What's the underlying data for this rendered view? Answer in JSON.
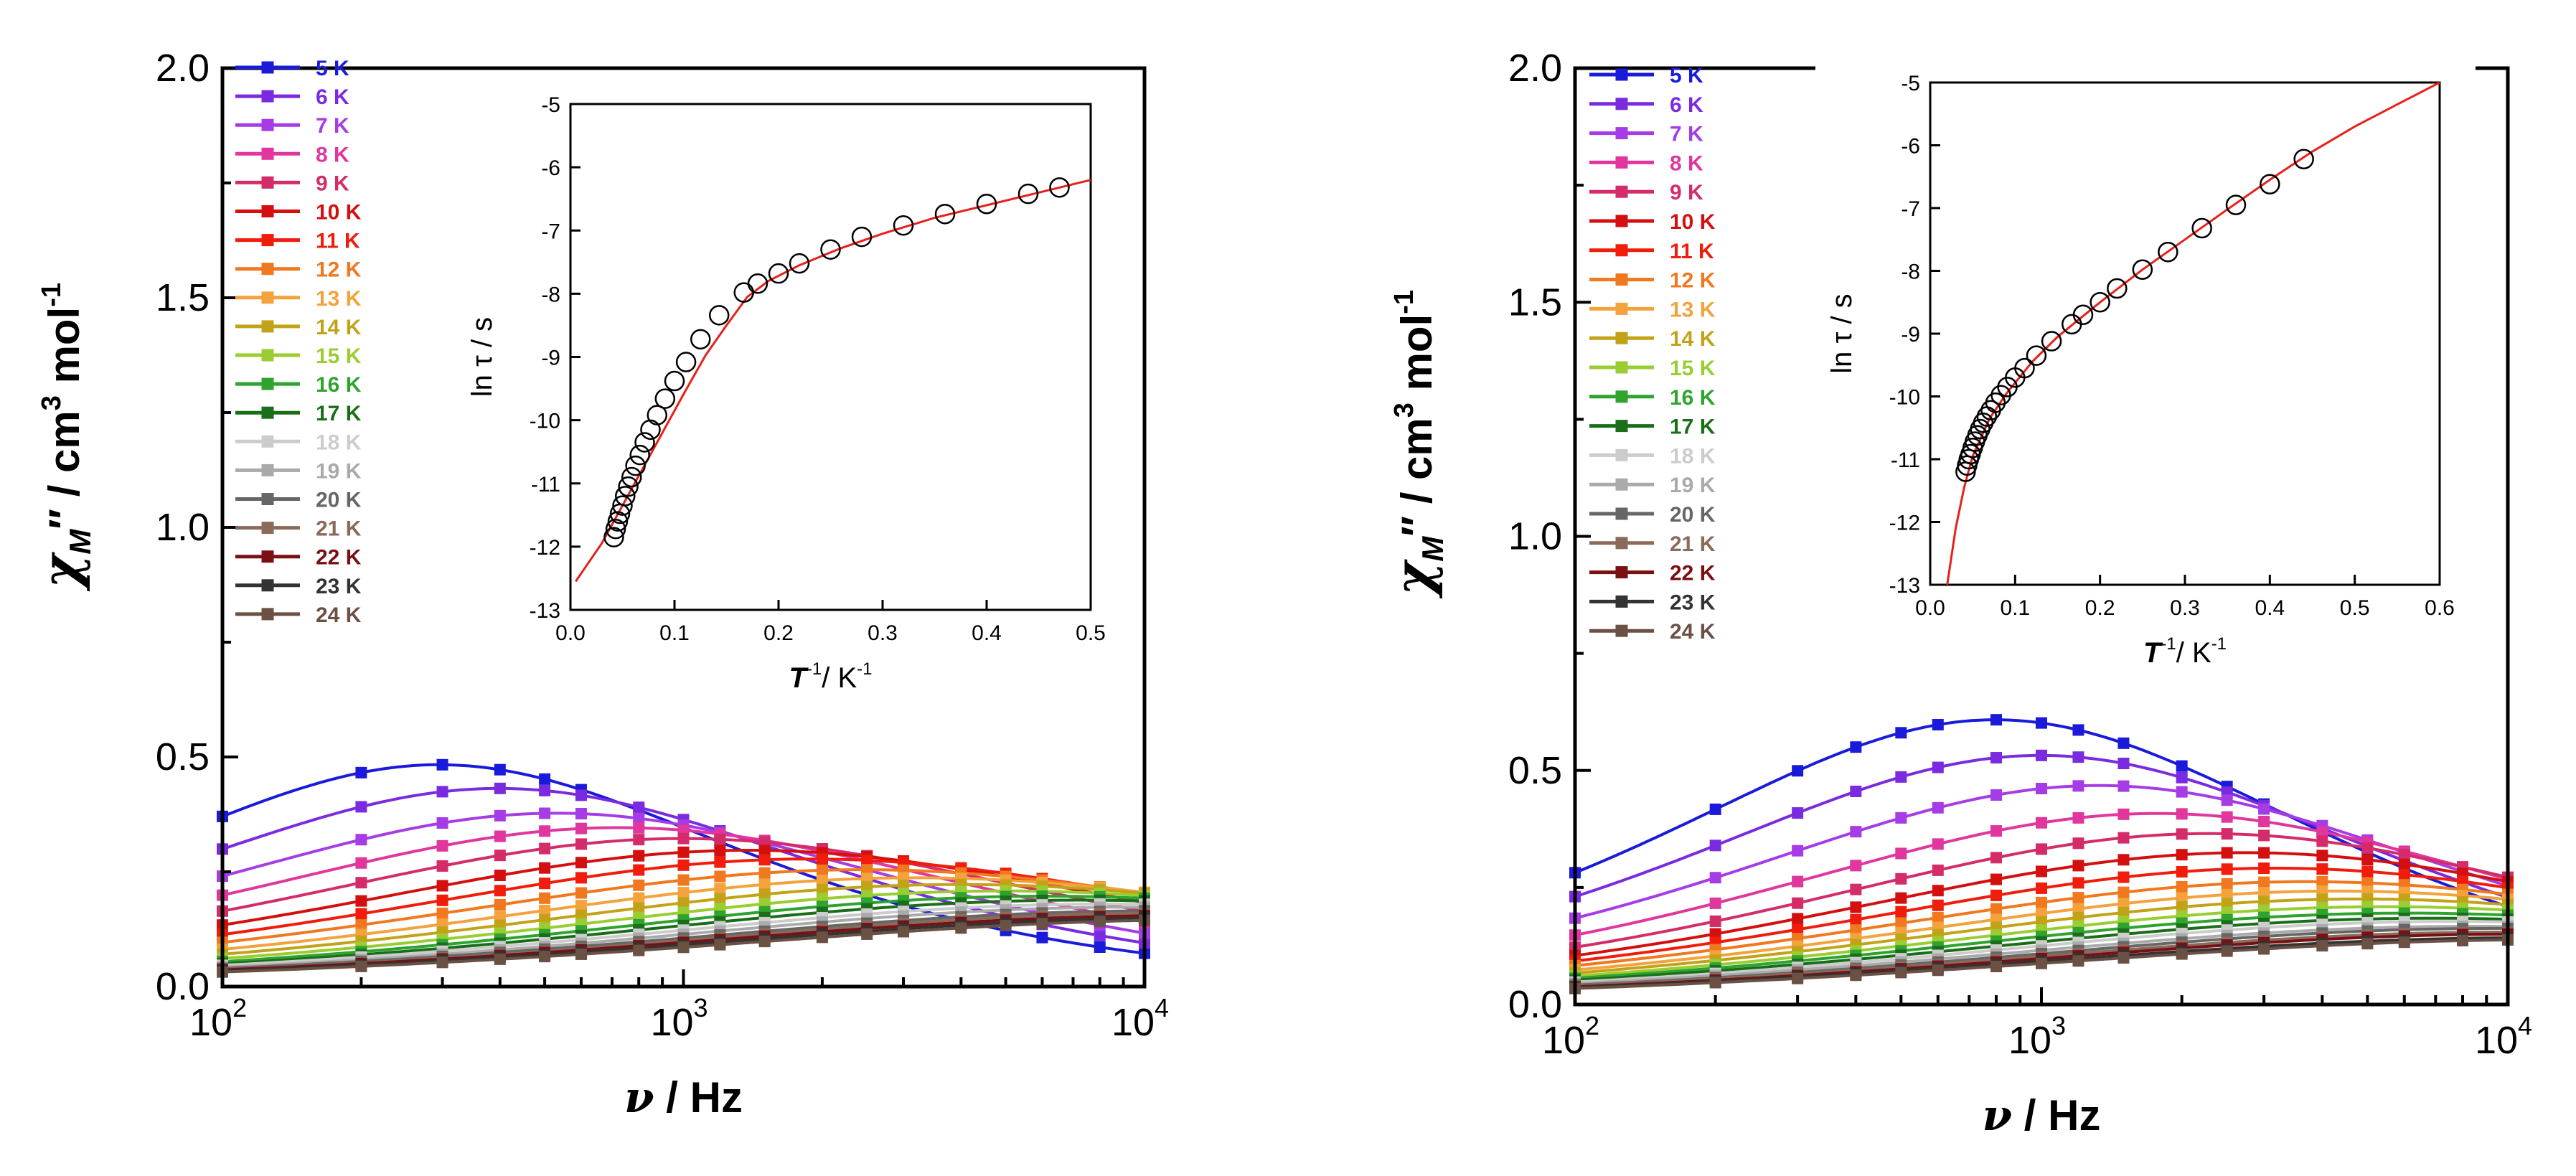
{
  "chart_data": [
    {
      "type": "line",
      "panel": "left",
      "xscale": "log",
      "xlim": [
        100,
        10000
      ],
      "ylim": [
        0,
        2.0
      ],
      "x_ticks": [
        "10",
        "10",
        "10"
      ],
      "x_tick_exps": [
        "2",
        "3",
        "4"
      ],
      "y_ticks": [
        "0.0",
        "0.5",
        "1.0",
        "1.5",
        "2.0"
      ],
      "xlabel_sym": "ν",
      "xlabel_rest": " / Hz",
      "ylabel_sym": "χ",
      "ylabel_sub": "M",
      "ylabel_rest": "″ / cm",
      "ylabel_sup": "3",
      "ylabel_rest2": " mol",
      "ylabel_sup2": "-1",
      "x": [
        100,
        200,
        300,
        400,
        500,
        600,
        800,
        1000,
        1200,
        1500,
        2000,
        2500,
        3000,
        4000,
        5000,
        6000,
        8000,
        10000
      ],
      "series": [
        {
          "name": "5 K",
          "color": "#1a1adb",
          "tau": 0.00054,
          "amp": 1.33,
          "alpha": 0.2,
          "base": 0.0
        },
        {
          "name": "6 K",
          "color": "#7a2be0",
          "tau": 0.0004,
          "amp": 1.27,
          "alpha": 0.24,
          "base": 0.0
        },
        {
          "name": "7 K",
          "color": "#a63ce6",
          "tau": 0.0003,
          "amp": 1.19,
          "alpha": 0.28,
          "base": 0.0
        },
        {
          "name": "8 K",
          "color": "#e0369e",
          "tau": 0.00022,
          "amp": 1.15,
          "alpha": 0.31,
          "base": 0.0
        },
        {
          "name": "9 K",
          "color": "#d42c6a",
          "tau": 0.00016,
          "amp": 1.11,
          "alpha": 0.33,
          "base": 0.0
        },
        {
          "name": "10 K",
          "color": "#d40f0f",
          "tau": 0.000115,
          "amp": 1.06,
          "alpha": 0.35,
          "base": 0.0
        },
        {
          "name": "11 K",
          "color": "#f01c0c",
          "tau": 8.5e-05,
          "amp": 1.03,
          "alpha": 0.37,
          "base": 0.0
        },
        {
          "name": "12 K",
          "color": "#f0781e",
          "tau": 6.5e-05,
          "amp": 0.98,
          "alpha": 0.39,
          "base": 0.0
        },
        {
          "name": "13 K",
          "color": "#f4a23c",
          "tau": 5e-05,
          "amp": 0.93,
          "alpha": 0.4,
          "base": 0.0
        },
        {
          "name": "14 K",
          "color": "#c2a318",
          "tau": 4e-05,
          "amp": 0.89,
          "alpha": 0.41,
          "base": 0.0
        },
        {
          "name": "15 K",
          "color": "#9acd32",
          "tau": 3.2e-05,
          "amp": 0.85,
          "alpha": 0.42,
          "base": 0.0
        },
        {
          "name": "16 K",
          "color": "#2ea32e",
          "tau": 2.6e-05,
          "amp": 0.82,
          "alpha": 0.43,
          "base": 0.0
        },
        {
          "name": "17 K",
          "color": "#1a6e1a",
          "tau": 2.2e-05,
          "amp": 0.8,
          "alpha": 0.44,
          "base": 0.0
        },
        {
          "name": "18 K",
          "color": "#cccccc",
          "tau": 1.9e-05,
          "amp": 0.78,
          "alpha": 0.45,
          "base": 0.0
        },
        {
          "name": "19 K",
          "color": "#aaaaaa",
          "tau": 1.7e-05,
          "amp": 0.75,
          "alpha": 0.45,
          "base": 0.0
        },
        {
          "name": "20 K",
          "color": "#666666",
          "tau": 1.5e-05,
          "amp": 0.73,
          "alpha": 0.46,
          "base": 0.0
        },
        {
          "name": "21 K",
          "color": "#8a6a5a",
          "tau": 1.4e-05,
          "amp": 0.71,
          "alpha": 0.46,
          "base": 0.0
        },
        {
          "name": "22 K",
          "color": "#7a0f14",
          "tau": 1.3e-05,
          "amp": 0.7,
          "alpha": 0.47,
          "base": 0.0
        },
        {
          "name": "23 K",
          "color": "#333333",
          "tau": 1.2e-05,
          "amp": 0.68,
          "alpha": 0.47,
          "base": 0.0
        },
        {
          "name": "24 K",
          "color": "#6b5044",
          "tau": 1.1e-05,
          "amp": 0.66,
          "alpha": 0.47,
          "base": 0.0
        }
      ],
      "inset": {
        "type": "scatter",
        "xlim": [
          0.0,
          0.5
        ],
        "ylim": [
          -13,
          -5
        ],
        "x_ticks": [
          "0.0",
          "0.1",
          "0.2",
          "0.3",
          "0.4",
          "0.5"
        ],
        "y_ticks": [
          "-13",
          "-12",
          "-11",
          "-10",
          "-9",
          "-8",
          "-7",
          "-6",
          "-5"
        ],
        "xlabel_sym": "T",
        "xlabel_sup": "-1",
        "xlabel_rest": "/ K",
        "xlabel_sup2": "-1",
        "ylabel": "ln τ / s",
        "points": [
          [
            0.0417,
            -11.85
          ],
          [
            0.0435,
            -11.72
          ],
          [
            0.0455,
            -11.6
          ],
          [
            0.0476,
            -11.48
          ],
          [
            0.05,
            -11.35
          ],
          [
            0.0526,
            -11.2
          ],
          [
            0.0556,
            -11.05
          ],
          [
            0.0588,
            -10.9
          ],
          [
            0.0625,
            -10.72
          ],
          [
            0.0667,
            -10.55
          ],
          [
            0.0714,
            -10.35
          ],
          [
            0.0769,
            -10.15
          ],
          [
            0.0833,
            -9.92
          ],
          [
            0.0909,
            -9.66
          ],
          [
            0.1,
            -9.38
          ],
          [
            0.1111,
            -9.08
          ],
          [
            0.125,
            -8.72
          ],
          [
            0.1429,
            -8.34
          ],
          [
            0.1667,
            -7.98
          ],
          [
            0.18,
            -7.84
          ],
          [
            0.2,
            -7.68
          ],
          [
            0.22,
            -7.52
          ],
          [
            0.25,
            -7.3
          ],
          [
            0.28,
            -7.1
          ],
          [
            0.32,
            -6.92
          ],
          [
            0.36,
            -6.74
          ],
          [
            0.4,
            -6.58
          ],
          [
            0.44,
            -6.42
          ],
          [
            0.47,
            -6.32
          ]
        ],
        "fit": [
          [
            0.005,
            -12.55
          ],
          [
            0.03,
            -11.95
          ],
          [
            0.05,
            -11.35
          ],
          [
            0.07,
            -10.75
          ],
          [
            0.09,
            -10.15
          ],
          [
            0.11,
            -9.55
          ],
          [
            0.13,
            -8.97
          ],
          [
            0.15,
            -8.5
          ],
          [
            0.17,
            -8.05
          ],
          [
            0.19,
            -7.8
          ],
          [
            0.22,
            -7.55
          ],
          [
            0.26,
            -7.28
          ],
          [
            0.3,
            -7.05
          ],
          [
            0.35,
            -6.8
          ],
          [
            0.4,
            -6.6
          ],
          [
            0.45,
            -6.4
          ],
          [
            0.5,
            -6.2
          ]
        ]
      }
    },
    {
      "type": "line",
      "panel": "right",
      "xscale": "log",
      "xlim": [
        100,
        10000
      ],
      "ylim": [
        0,
        2.0
      ],
      "x_ticks": [
        "10",
        "10",
        "10"
      ],
      "x_tick_exps": [
        "2",
        "3",
        "4"
      ],
      "y_ticks": [
        "0.0",
        "0.5",
        "1.0",
        "1.5",
        "2.0"
      ],
      "xlabel_sym": "ν",
      "xlabel_rest": " / Hz",
      "ylabel_sym": "χ",
      "ylabel_sub": "M",
      "ylabel_rest": "″ / cm",
      "ylabel_sup": "3",
      "ylabel_rest2": " mol",
      "ylabel_sup2": "-1",
      "x": [
        100,
        200,
        300,
        400,
        500,
        600,
        800,
        1000,
        1200,
        1500,
        2000,
        2500,
        3000,
        4000,
        5000,
        6000,
        8000,
        10000
      ],
      "series": [
        {
          "name": "5 K",
          "color": "#1a1adb",
          "tau": 0.0002,
          "amp": 1.76,
          "alpha": 0.23,
          "base": 0.0
        },
        {
          "name": "6 K",
          "color": "#7a2be0",
          "tau": 0.00016,
          "amp": 1.62,
          "alpha": 0.26,
          "base": 0.0
        },
        {
          "name": "7 K",
          "color": "#a63ce6",
          "tau": 0.00012,
          "amp": 1.5,
          "alpha": 0.29,
          "base": 0.0
        },
        {
          "name": "8 K",
          "color": "#e0369e",
          "tau": 9e-05,
          "amp": 1.38,
          "alpha": 0.32,
          "base": 0.0
        },
        {
          "name": "9 K",
          "color": "#d42c6a",
          "tau": 7e-05,
          "amp": 1.28,
          "alpha": 0.34,
          "base": 0.0
        },
        {
          "name": "10 K",
          "color": "#d40f0f",
          "tau": 5.8e-05,
          "amp": 1.18,
          "alpha": 0.36,
          "base": 0.0
        },
        {
          "name": "11 K",
          "color": "#f01c0c",
          "tau": 5e-05,
          "amp": 1.1,
          "alpha": 0.38,
          "base": 0.0
        },
        {
          "name": "12 K",
          "color": "#f0781e",
          "tau": 4.3e-05,
          "amp": 1.03,
          "alpha": 0.4,
          "base": 0.0
        },
        {
          "name": "13 K",
          "color": "#f4a23c",
          "tau": 3.7e-05,
          "amp": 0.97,
          "alpha": 0.41,
          "base": 0.0
        },
        {
          "name": "14 K",
          "color": "#c2a318",
          "tau": 3.3e-05,
          "amp": 0.92,
          "alpha": 0.42,
          "base": 0.0
        },
        {
          "name": "15 K",
          "color": "#9acd32",
          "tau": 2.9e-05,
          "amp": 0.87,
          "alpha": 0.43,
          "base": 0.0
        },
        {
          "name": "16 K",
          "color": "#2ea32e",
          "tau": 2.6e-05,
          "amp": 0.83,
          "alpha": 0.44,
          "base": 0.0
        },
        {
          "name": "17 K",
          "color": "#1a6e1a",
          "tau": 2.3e-05,
          "amp": 0.8,
          "alpha": 0.45,
          "base": 0.0
        },
        {
          "name": "18 K",
          "color": "#cccccc",
          "tau": 2.1e-05,
          "amp": 0.77,
          "alpha": 0.45,
          "base": 0.0
        },
        {
          "name": "19 K",
          "color": "#aaaaaa",
          "tau": 1.9e-05,
          "amp": 0.74,
          "alpha": 0.46,
          "base": 0.0
        },
        {
          "name": "20 K",
          "color": "#666666",
          "tau": 1.7e-05,
          "amp": 0.72,
          "alpha": 0.46,
          "base": 0.0
        },
        {
          "name": "21 K",
          "color": "#8a6a5a",
          "tau": 1.6e-05,
          "amp": 0.7,
          "alpha": 0.47,
          "base": 0.0
        },
        {
          "name": "22 K",
          "color": "#7a0f14",
          "tau": 1.5e-05,
          "amp": 0.68,
          "alpha": 0.47,
          "base": 0.0
        },
        {
          "name": "23 K",
          "color": "#333333",
          "tau": 1.4e-05,
          "amp": 0.66,
          "alpha": 0.48,
          "base": 0.0
        },
        {
          "name": "24 K",
          "color": "#6b5044",
          "tau": 1.3e-05,
          "amp": 0.64,
          "alpha": 0.48,
          "base": 0.0
        }
      ],
      "inset": {
        "type": "scatter",
        "xlim": [
          0.0,
          0.6
        ],
        "ylim": [
          -13,
          -5
        ],
        "x_ticks": [
          "0.0",
          "0.1",
          "0.2",
          "0.3",
          "0.4",
          "0.5",
          "0.6"
        ],
        "y_ticks": [
          "-13",
          "-12",
          "-11",
          "-10",
          "-9",
          "-8",
          "-7",
          "-6",
          "-5"
        ],
        "xlabel_sym": "T",
        "xlabel_sup": "-1",
        "xlabel_rest": "/ K",
        "xlabel_sup2": "-1",
        "ylabel": "ln τ / s",
        "points": [
          [
            0.0417,
            -11.2
          ],
          [
            0.0435,
            -11.1
          ],
          [
            0.0455,
            -11.0
          ],
          [
            0.0476,
            -10.92
          ],
          [
            0.05,
            -10.82
          ],
          [
            0.0526,
            -10.72
          ],
          [
            0.0556,
            -10.62
          ],
          [
            0.0588,
            -10.52
          ],
          [
            0.0625,
            -10.42
          ],
          [
            0.0667,
            -10.32
          ],
          [
            0.0714,
            -10.22
          ],
          [
            0.0769,
            -10.1
          ],
          [
            0.0833,
            -9.98
          ],
          [
            0.0909,
            -9.85
          ],
          [
            0.1,
            -9.7
          ],
          [
            0.1111,
            -9.55
          ],
          [
            0.125,
            -9.35
          ],
          [
            0.1429,
            -9.12
          ],
          [
            0.1667,
            -8.85
          ],
          [
            0.18,
            -8.7
          ],
          [
            0.2,
            -8.5
          ],
          [
            0.22,
            -8.28
          ],
          [
            0.25,
            -7.98
          ],
          [
            0.28,
            -7.7
          ],
          [
            0.32,
            -7.32
          ],
          [
            0.36,
            -6.95
          ],
          [
            0.4,
            -6.62
          ],
          [
            0.44,
            -6.22
          ]
        ],
        "fit": [
          [
            0.02,
            -13.0
          ],
          [
            0.03,
            -12.1
          ],
          [
            0.04,
            -11.45
          ],
          [
            0.05,
            -10.95
          ],
          [
            0.07,
            -10.35
          ],
          [
            0.09,
            -9.95
          ],
          [
            0.12,
            -9.45
          ],
          [
            0.15,
            -9.05
          ],
          [
            0.2,
            -8.5
          ],
          [
            0.25,
            -7.98
          ],
          [
            0.3,
            -7.5
          ],
          [
            0.35,
            -7.02
          ],
          [
            0.4,
            -6.55
          ],
          [
            0.45,
            -6.1
          ],
          [
            0.5,
            -5.7
          ],
          [
            0.55,
            -5.35
          ],
          [
            0.6,
            -5.0
          ]
        ]
      }
    }
  ]
}
